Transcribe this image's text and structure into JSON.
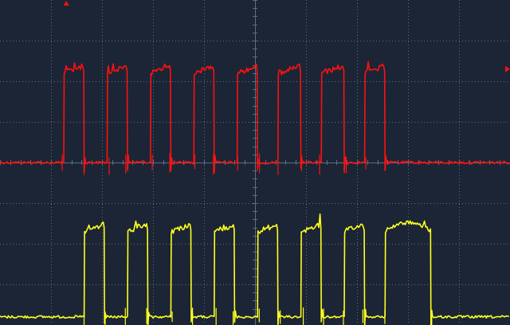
{
  "colors": {
    "background": "#1b2535",
    "grid": "#5d6e84",
    "ch1": "#ff1010",
    "ch2": "#ffff20",
    "marker": "#ff1010"
  },
  "chart_data": {
    "type": "line",
    "title": "",
    "xlabel": "",
    "ylabel": "",
    "grid": true,
    "xlim": [
      0,
      10
    ],
    "ylim": [
      -4,
      4
    ],
    "x_divisions": 10,
    "y_divisions": 8,
    "markers": {
      "trigger_position_div": 1.3,
      "ch1_level_div": 2.3
    },
    "series": [
      {
        "id": "ch1",
        "color": "#ff1010",
        "baseline_div": 0.0,
        "high_div": 2.3,
        "pulses": [
          [
            1.25,
            1.65
          ],
          [
            2.1,
            2.5
          ],
          [
            2.95,
            3.35
          ],
          [
            3.8,
            4.2
          ],
          [
            4.65,
            5.05
          ],
          [
            5.45,
            5.9
          ],
          [
            6.3,
            6.75
          ],
          [
            7.15,
            7.55
          ]
        ]
      },
      {
        "id": "ch2",
        "color": "#ffff20",
        "baseline_div": -3.8,
        "high_div": -1.6,
        "pulses": [
          [
            1.65,
            2.05
          ],
          [
            2.5,
            2.9
          ],
          [
            3.35,
            3.75
          ],
          [
            4.2,
            4.6
          ],
          [
            5.05,
            5.45
          ],
          [
            5.9,
            6.3
          ],
          [
            6.75,
            7.15
          ],
          [
            7.55,
            8.45
          ]
        ]
      }
    ]
  }
}
